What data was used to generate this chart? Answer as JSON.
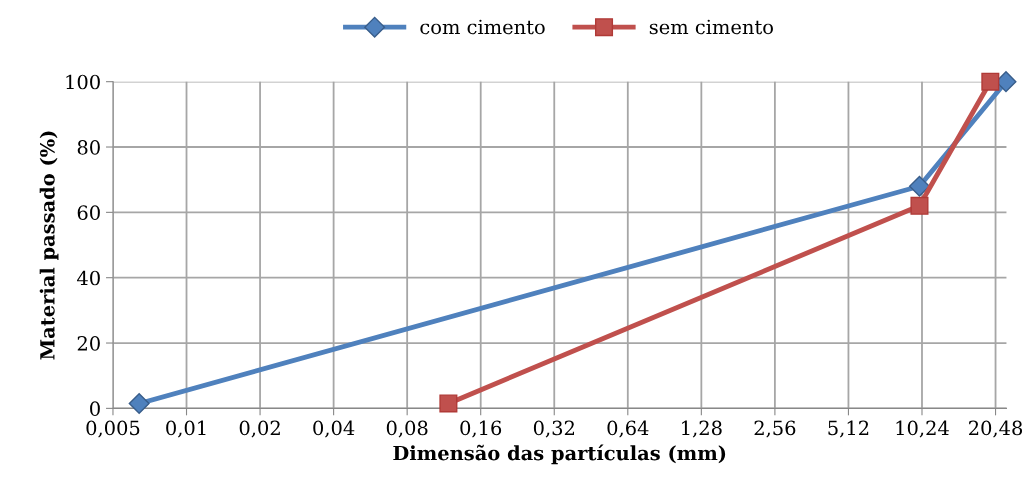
{
  "chart_data": {
    "type": "line",
    "xlabel": "Dimensão das partículas (mm)",
    "ylabel": "Material passado (%)",
    "log": "x",
    "xlim": [
      0.005,
      22.7
    ],
    "ylim": [
      0,
      100
    ],
    "xticks": [
      {
        "value": 0.005,
        "label": "0,005"
      },
      {
        "value": 0.01,
        "label": "0,01"
      },
      {
        "value": 0.02,
        "label": "0,02"
      },
      {
        "value": 0.04,
        "label": "0,04"
      },
      {
        "value": 0.08,
        "label": "0,08"
      },
      {
        "value": 0.16,
        "label": "0,16"
      },
      {
        "value": 0.32,
        "label": "0,32"
      },
      {
        "value": 0.64,
        "label": "0,64"
      },
      {
        "value": 1.28,
        "label": "1,28"
      },
      {
        "value": 2.56,
        "label": "2,56"
      },
      {
        "value": 5.12,
        "label": "5,12"
      },
      {
        "value": 10.24,
        "label": "10,24"
      },
      {
        "value": 20.48,
        "label": "20,48"
      }
    ],
    "yticks": [
      0,
      20,
      40,
      60,
      80,
      100
    ],
    "grid": true,
    "legend": "top",
    "series": [
      {
        "name": "com cimento",
        "color": "#4f81bd",
        "marker": "diamond",
        "x": [
          0.0064,
          10,
          22.6
        ],
        "values": [
          1.5,
          68,
          100
        ]
      },
      {
        "name": "sem cimento",
        "color": "#c0504d",
        "marker": "square",
        "x": [
          0.118,
          10,
          19.5
        ],
        "values": [
          1.5,
          62,
          100
        ]
      }
    ]
  }
}
